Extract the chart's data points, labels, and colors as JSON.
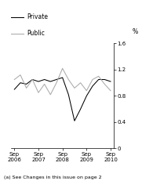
{
  "x_labels": [
    "Sep\n2006",
    "Sep\n2007",
    "Sep\n2008",
    "Sep\n2009",
    "Sep\n2010"
  ],
  "x_positions": [
    0,
    4,
    8,
    12,
    16
  ],
  "private_x": [
    0,
    1,
    2,
    3,
    4,
    5,
    6,
    7,
    8,
    9,
    10,
    11,
    12,
    13,
    14,
    15,
    16
  ],
  "private_y": [
    0.9,
    1.0,
    0.98,
    1.05,
    1.02,
    1.05,
    1.02,
    1.05,
    1.08,
    0.82,
    0.42,
    0.6,
    0.8,
    0.95,
    1.05,
    1.05,
    1.02
  ],
  "public_x": [
    0,
    1,
    2,
    3,
    4,
    5,
    6,
    7,
    8,
    9,
    10,
    11,
    12,
    13,
    14,
    15,
    16
  ],
  "public_y": [
    1.05,
    1.12,
    0.92,
    1.05,
    0.85,
    0.98,
    0.82,
    1.0,
    1.22,
    1.05,
    0.92,
    1.0,
    0.88,
    1.05,
    1.1,
    0.98,
    0.88
  ],
  "private_color": "#000000",
  "public_color": "#aaaaaa",
  "ylabel": "%",
  "ylim": [
    0,
    1.6
  ],
  "yticks": [
    0,
    0.4,
    0.8,
    1.2,
    1.6
  ],
  "ytick_labels": [
    "0",
    "0.4",
    "0.8",
    "1.2",
    "1.6"
  ],
  "annotation": "(a) See Changes in this issue on page 2",
  "legend_private": "Private",
  "legend_public": "Public",
  "linewidth": 0.75,
  "background_color": "#ffffff"
}
